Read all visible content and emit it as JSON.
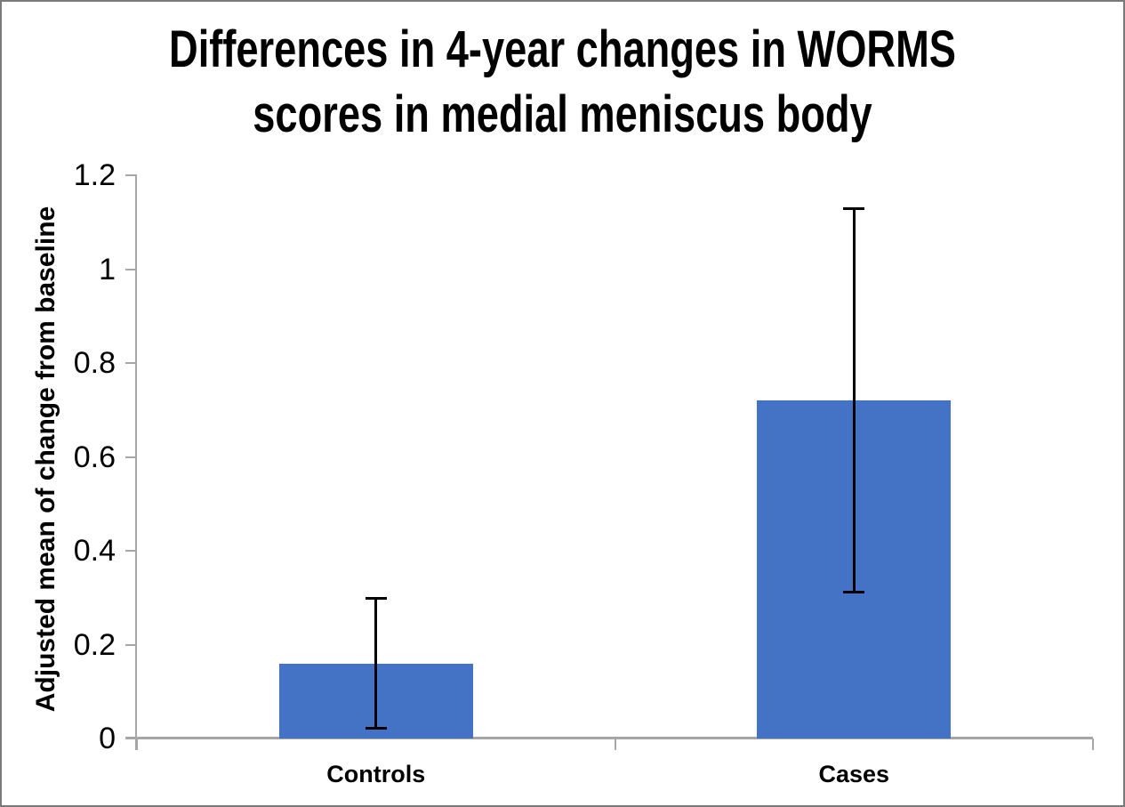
{
  "frame": {
    "background": "#FFFFFF",
    "border_color": "#7A7A7A"
  },
  "chart_data": {
    "type": "bar",
    "title": "Differences in 4-year changes in WORMS scores in medial meniscus body",
    "title_lines": [
      "Differences in 4-year changes in WORMS",
      "scores in medial meniscus body"
    ],
    "ylabel": "Adjusted mean of change from baseline",
    "xlabel": "",
    "categories": [
      "Controls",
      "Cases"
    ],
    "values": [
      0.16,
      0.72
    ],
    "error_bars": {
      "upper": [
        0.3,
        1.13
      ],
      "lower": [
        0.02,
        0.31
      ]
    },
    "ylim": [
      0,
      1.2
    ],
    "yticks": [
      0,
      0.2,
      0.4,
      0.6,
      0.8,
      1,
      1.2
    ],
    "ytick_labels": [
      "0",
      "0.2",
      "0.4",
      "0.6",
      "0.8",
      "1",
      "1.2"
    ],
    "grid": false,
    "legend": false,
    "bar_color": "#4472C4",
    "axis_color": "#A6A6A6",
    "error_bar_color": "#000000",
    "text_color": "#000000"
  }
}
